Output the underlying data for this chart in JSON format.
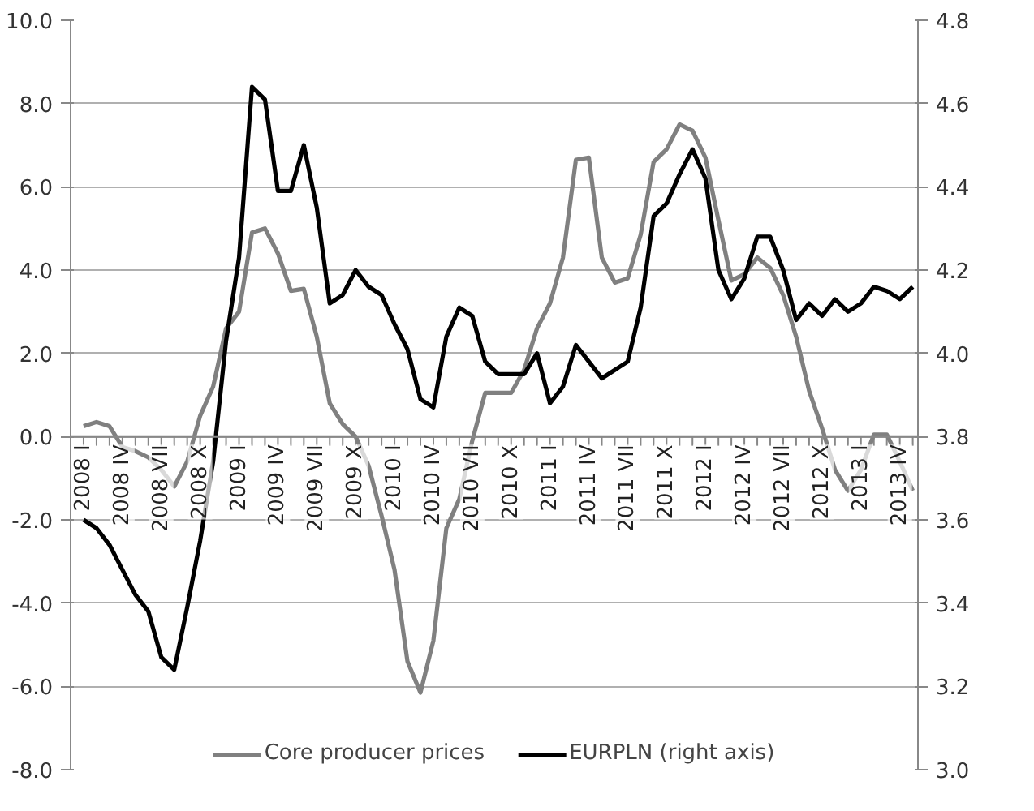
{
  "chart_data": {
    "type": "line",
    "categories": [
      "2008 I",
      null,
      null,
      "2008 IV",
      null,
      null,
      "2008 VII",
      null,
      null,
      "2008 X",
      null,
      null,
      "2009 I",
      null,
      null,
      "2009 IV",
      null,
      null,
      "2009 VII",
      null,
      null,
      "2009 X",
      null,
      null,
      "2010 I",
      null,
      null,
      "2010 IV",
      null,
      null,
      "2010 VII",
      null,
      null,
      "2010 X",
      null,
      null,
      "2011 I",
      null,
      null,
      "2011 IV",
      null,
      null,
      "2011 VII",
      null,
      null,
      "2011 X",
      null,
      null,
      "2012 I",
      null,
      null,
      "2012 IV",
      null,
      null,
      "2012 VII",
      null,
      null,
      "2012 X",
      null,
      null,
      "2013 I",
      null,
      null,
      "2013 IV",
      null
    ],
    "series": [
      {
        "name": "Core producer prices",
        "color": "#808080",
        "values": [
          0.25,
          0.35,
          0.25,
          -0.25,
          -0.35,
          -0.5,
          -0.8,
          -1.2,
          -0.6,
          0.5,
          1.2,
          2.6,
          3.0,
          4.9,
          5.0,
          4.4,
          3.5,
          3.55,
          2.4,
          0.8,
          0.3,
          0.0,
          -0.7,
          -1.9,
          -3.2,
          -5.4,
          -6.15,
          -4.9,
          -2.2,
          -1.5,
          -0.1,
          1.05,
          1.05,
          1.05,
          1.6,
          2.6,
          3.2,
          4.3,
          6.65,
          6.7,
          4.3,
          3.7,
          3.8,
          4.85,
          6.6,
          6.9,
          7.5,
          7.35,
          6.7,
          5.2,
          3.75,
          3.9,
          4.3,
          4.05,
          3.4,
          2.4,
          1.1,
          0.2,
          -0.8,
          -1.3,
          -0.8,
          0.05,
          0.05,
          -0.6,
          -1.3
        ]
      },
      {
        "name": "EURPLN (right axis)",
        "color": "#000000",
        "axis": "y2",
        "values": [
          3.6,
          3.58,
          3.54,
          3.48,
          3.42,
          3.38,
          3.27,
          3.24,
          3.39,
          3.55,
          3.74,
          4.03,
          4.23,
          4.64,
          4.61,
          4.39,
          4.39,
          4.5,
          4.35,
          4.12,
          4.14,
          4.2,
          4.16,
          4.14,
          4.07,
          4.01,
          3.89,
          3.87,
          4.04,
          4.11,
          4.09,
          3.98,
          3.95,
          3.95,
          3.95,
          4.0,
          3.88,
          3.92,
          4.02,
          3.98,
          3.94,
          3.96,
          3.98,
          4.11,
          4.33,
          4.36,
          4.43,
          4.49,
          4.42,
          4.2,
          4.13,
          4.18,
          4.28,
          4.28,
          4.2,
          4.08,
          4.12,
          4.09,
          4.13,
          4.1,
          4.12,
          4.16,
          4.15,
          4.13,
          4.16
        ]
      }
    ],
    "ylim": [
      -8,
      10
    ],
    "yticks": [
      {
        "value": -8,
        "label": "-8.0"
      },
      {
        "value": -6,
        "label": "-6.0"
      },
      {
        "value": -4,
        "label": "-4.0"
      },
      {
        "value": -2,
        "label": "-2.0"
      },
      {
        "value": 0,
        "label": "0.0"
      },
      {
        "value": 2,
        "label": "2.0"
      },
      {
        "value": 4,
        "label": "4.0"
      },
      {
        "value": 6,
        "label": "6.0"
      },
      {
        "value": 8,
        "label": "8.0"
      },
      {
        "value": 10,
        "label": "10.0"
      }
    ],
    "y2lim": [
      3.0,
      4.8
    ],
    "y2ticks": [
      {
        "value": 3.0,
        "label": "3.0"
      },
      {
        "value": 3.2,
        "label": "3.2"
      },
      {
        "value": 3.4,
        "label": "3.4"
      },
      {
        "value": 3.6,
        "label": "3.6"
      },
      {
        "value": 3.8,
        "label": "3.8"
      },
      {
        "value": 4.0,
        "label": "4.0"
      },
      {
        "value": 4.2,
        "label": "4.2"
      },
      {
        "value": 4.4,
        "label": "4.4"
      },
      {
        "value": 4.6,
        "label": "4.6"
      },
      {
        "value": 4.8,
        "label": "4.8"
      }
    ],
    "grid": "y",
    "legend": "bottom"
  }
}
